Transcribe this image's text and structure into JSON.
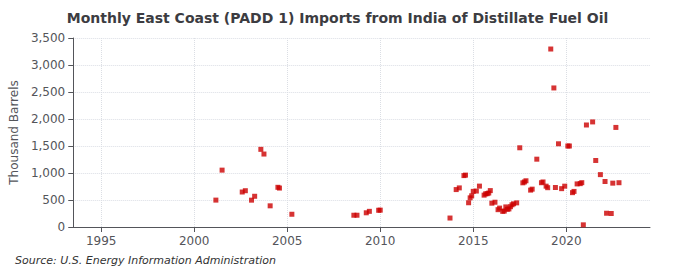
{
  "chart_data": {
    "type": "scatter",
    "title": "Monthly East Coast (PADD 1) Imports from India of Distillate Fuel Oil",
    "ylabel": "Thousand Barrels",
    "annotations": [
      "Source: U.S. Energy Information Administration"
    ],
    "color": "#cc0000",
    "marker": "square",
    "grid": true,
    "xlim": [
      1993.5,
      2024.5
    ],
    "ylim": [
      0,
      3500
    ],
    "xticks": [
      1995,
      2000,
      2005,
      2010,
      2015,
      2020
    ],
    "yticks": [
      0,
      500,
      {
        "value": 1000,
        "label": "1,000"
      },
      {
        "value": 1500,
        "label": "1,500"
      },
      {
        "value": 2000,
        "label": "2,000"
      },
      {
        "value": 2500,
        "label": "2,500"
      },
      {
        "value": 3000,
        "label": "3,000"
      },
      {
        "value": 3500,
        "label": "3,500"
      }
    ],
    "x": [
      2001.166,
      2001.5,
      2002.583,
      2002.75,
      2003.083,
      2003.25,
      2003.583,
      2003.75,
      2004.083,
      2004.5,
      2004.583,
      2005.25,
      2008.583,
      2008.75,
      2009.25,
      2009.416,
      2009.916,
      2010.0,
      2013.75,
      2014.083,
      2014.25,
      2014.5,
      2014.583,
      2014.75,
      2014.833,
      2014.916,
      2015.0,
      2015.166,
      2015.333,
      2015.583,
      2015.666,
      2015.75,
      2015.833,
      2015.916,
      2016.0,
      2016.166,
      2016.333,
      2016.416,
      2016.583,
      2016.666,
      2016.75,
      2016.833,
      2016.916,
      2017.0,
      2017.083,
      2017.166,
      2017.333,
      2017.5,
      2017.666,
      2017.75,
      2017.833,
      2018.083,
      2018.166,
      2018.416,
      2018.666,
      2018.75,
      2018.916,
      2019.0,
      2019.166,
      2019.333,
      2019.416,
      2019.583,
      2019.75,
      2019.916,
      2020.083,
      2020.166,
      2020.333,
      2020.416,
      2020.583,
      2020.75,
      2020.833,
      2020.916,
      2021.083,
      2021.416,
      2021.583,
      2021.833,
      2022.083,
      2022.166,
      2022.416,
      2022.5,
      2022.666,
      2022.833
    ],
    "values": [
      498,
      1053,
      648,
      672,
      497,
      569,
      1438,
      1351,
      392,
      735,
      721,
      236,
      218,
      218,
      263,
      290,
      310,
      312,
      166,
      693,
      724,
      952,
      961,
      449,
      540,
      578,
      660,
      666,
      757,
      590,
      614,
      617,
      629,
      674,
      441,
      459,
      321,
      350,
      290,
      295,
      372,
      328,
      334,
      376,
      411,
      430,
      447,
      1467,
      818,
      834,
      856,
      683,
      701,
      1256,
      820,
      834,
      756,
      728,
      3296,
      2575,
      731,
      1541,
      710,
      756,
      1500,
      1500,
      636,
      659,
      798,
      803,
      821,
      40,
      1889,
      1946,
      1232,
      970,
      843,
      255,
      250,
      812,
      1844,
      820
    ]
  }
}
